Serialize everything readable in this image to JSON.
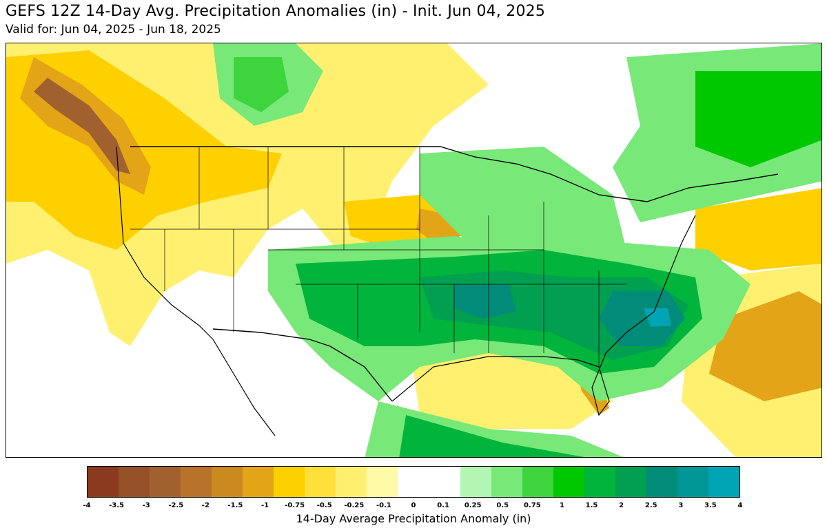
{
  "header": {
    "title": "GEFS 12Z 14-Day Avg. Precipitation Anomalies (in) - Init. Jun 04, 2025",
    "subtitle": "Valid for: Jun 04, 2025 - Jun 18, 2025"
  },
  "colorbar": {
    "label": "14-Day Average Precipitation Anomaly (in)",
    "ticks": [
      "-4",
      "-3.5",
      "-3",
      "-2.5",
      "-2",
      "-1.5",
      "-1",
      "-0.75",
      "-0.5",
      "-0.25",
      "-0.1",
      "0",
      "0.1",
      "0.25",
      "0.5",
      "0.75",
      "1",
      "1.5",
      "2",
      "2.5",
      "3",
      "3.5",
      "4"
    ],
    "colors": [
      "#8b3a1e",
      "#955028",
      "#a0612f",
      "#b8722a",
      "#cb8a1f",
      "#e3a418",
      "#ffd000",
      "#ffe03a",
      "#fff070",
      "#fffaa8",
      "#ffffff",
      "#ffffff",
      "#b3f5b3",
      "#78e878",
      "#3ed43e",
      "#00c800",
      "#00b43c",
      "#00a050",
      "#008c78",
      "#009696",
      "#00a5b5"
    ]
  },
  "map": {
    "region": "Continental United States",
    "palette": {
      "dry_dark": "#a0612f",
      "dry_mid": "#e3a418",
      "dry": "#ffd000",
      "dry_light": "#fff070",
      "dry_pale": "#fffaa8",
      "wet_pale": "#b3f5b3",
      "wet_light": "#78e878",
      "wet": "#3ed43e",
      "wet_mid": "#00b43c",
      "wet_dark": "#00a050",
      "wet_teal": "#008c78",
      "wet_cyan": "#00a5b5",
      "border": "#000000"
    }
  }
}
